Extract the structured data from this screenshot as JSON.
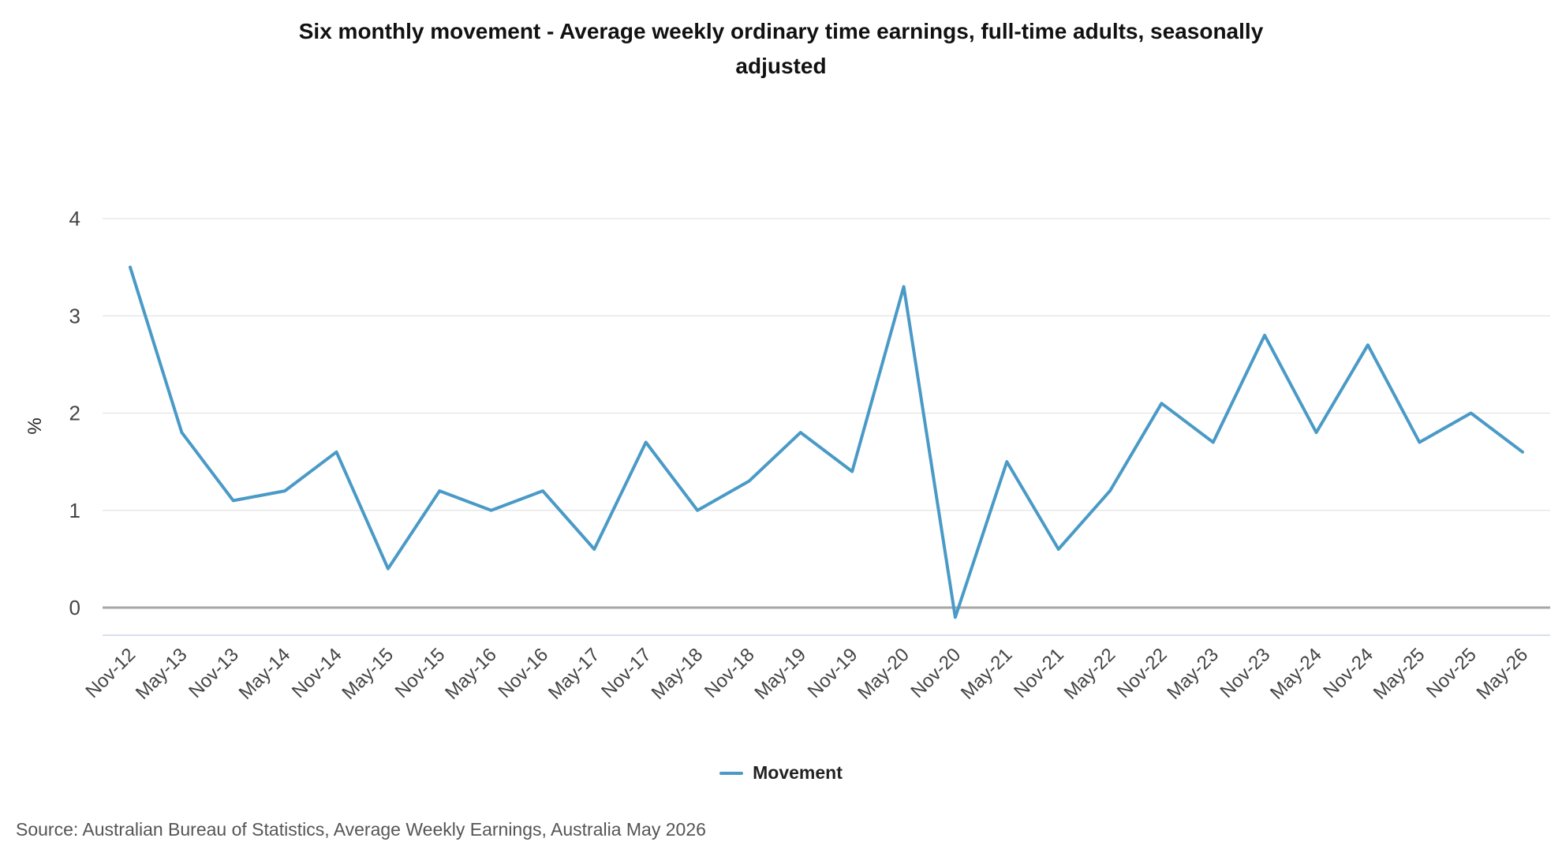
{
  "chart_data": {
    "type": "line",
    "title": "Six monthly movement - Average weekly ordinary time earnings, full-time adults, seasonally adjusted",
    "xlabel": "",
    "ylabel": "%",
    "ylim": [
      -0.3,
      4
    ],
    "yticks": [
      0,
      1,
      2,
      3,
      4
    ],
    "grid": true,
    "legend_position": "bottom-center",
    "categories": [
      "Nov-12",
      "May-13",
      "Nov-13",
      "May-14",
      "Nov-14",
      "May-15",
      "Nov-15",
      "May-16",
      "Nov-16",
      "May-17",
      "Nov-17",
      "May-18",
      "Nov-18",
      "May-19",
      "Nov-19",
      "May-20",
      "Nov-20",
      "May-21",
      "Nov-21",
      "May-22",
      "Nov-22",
      "May-23",
      "Nov-23",
      "May-24",
      "Nov-24",
      "May-25",
      "Nov-25",
      "May-26"
    ],
    "series": [
      {
        "name": "Movement",
        "color": "#4a9ac7",
        "values": [
          3.5,
          1.8,
          1.1,
          1.2,
          1.6,
          0.4,
          1.2,
          1.0,
          1.2,
          0.6,
          1.7,
          1.0,
          1.3,
          1.8,
          1.4,
          3.3,
          -0.1,
          1.5,
          0.6,
          1.2,
          2.1,
          1.7,
          2.8,
          1.8,
          2.7,
          1.7,
          2.0,
          1.6
        ]
      }
    ]
  },
  "source": "Source: Australian Bureau of Statistics, Average Weekly Earnings, Australia May 2026",
  "colors": {
    "grid": "#e3e3e3",
    "zero_line": "#a6a6a6",
    "axis_line": "#c9d6e6"
  }
}
